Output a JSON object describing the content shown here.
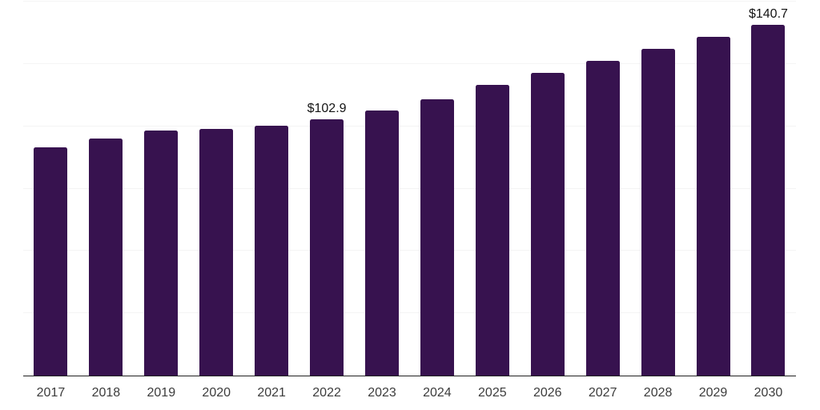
{
  "chart_data": {
    "type": "bar",
    "categories": [
      "2017",
      "2018",
      "2019",
      "2020",
      "2021",
      "2022",
      "2023",
      "2024",
      "2025",
      "2026",
      "2027",
      "2028",
      "2029",
      "2030"
    ],
    "values": [
      91.4,
      95.0,
      98.4,
      98.8,
      100.3,
      102.9,
      106.3,
      110.9,
      116.6,
      121.5,
      126.3,
      131.1,
      135.9,
      140.7
    ],
    "data_labels": {
      "2022": "$102.9",
      "2030": "$140.7"
    },
    "xlabel": "",
    "ylabel": "",
    "ylim": [
      0,
      150
    ],
    "y_gridlines": [
      25,
      50,
      75,
      100,
      125,
      150
    ],
    "grid": true,
    "legend": "none",
    "colors": {
      "bar": "#37124f",
      "gridline": "#f4f4f4",
      "axis_line": "#212121",
      "tick_label": "#3c3c3c",
      "data_label": "#141414",
      "background": "#ffffff"
    }
  }
}
